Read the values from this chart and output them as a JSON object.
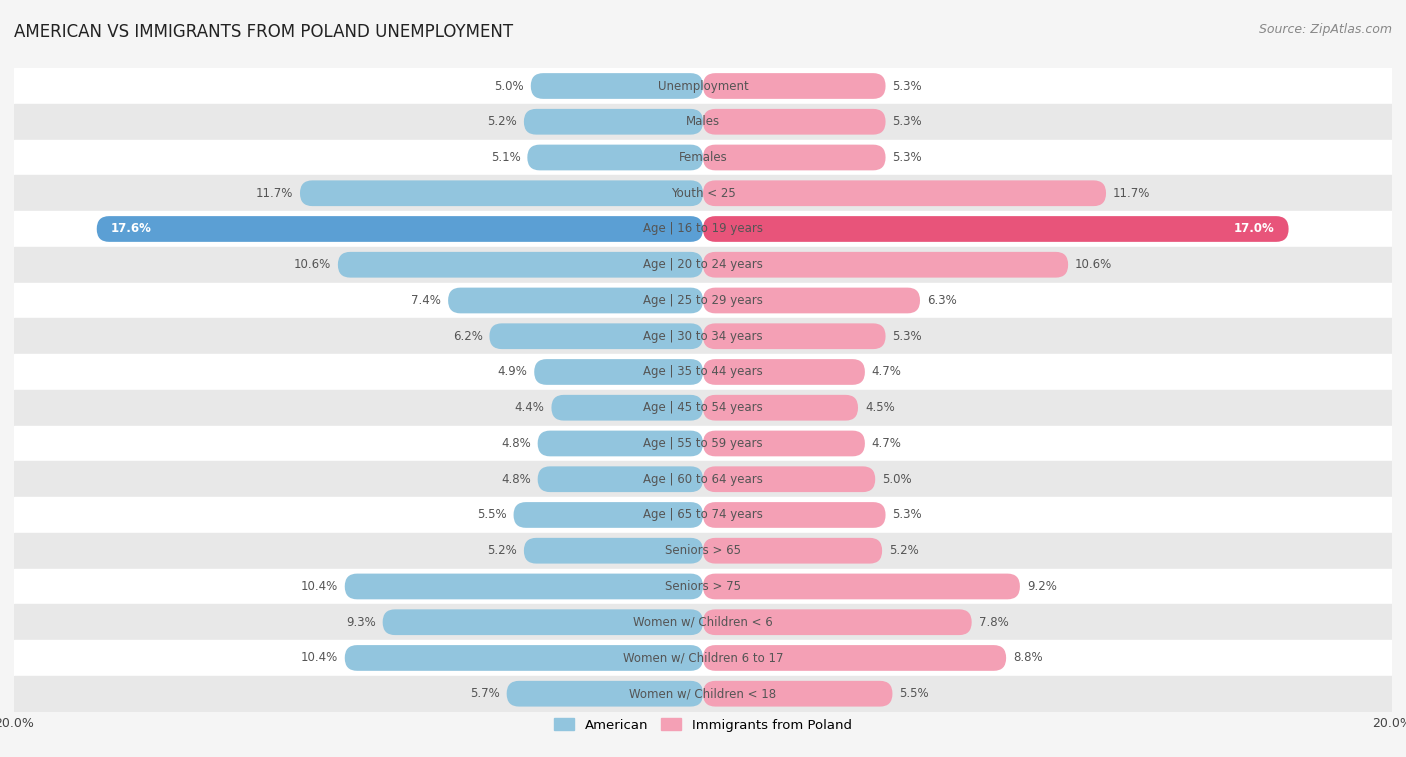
{
  "title": "AMERICAN VS IMMIGRANTS FROM POLAND UNEMPLOYMENT",
  "source": "Source: ZipAtlas.com",
  "categories": [
    "Unemployment",
    "Males",
    "Females",
    "Youth < 25",
    "Age | 16 to 19 years",
    "Age | 20 to 24 years",
    "Age | 25 to 29 years",
    "Age | 30 to 34 years",
    "Age | 35 to 44 years",
    "Age | 45 to 54 years",
    "Age | 55 to 59 years",
    "Age | 60 to 64 years",
    "Age | 65 to 74 years",
    "Seniors > 65",
    "Seniors > 75",
    "Women w/ Children < 6",
    "Women w/ Children 6 to 17",
    "Women w/ Children < 18"
  ],
  "american_values": [
    5.0,
    5.2,
    5.1,
    11.7,
    17.6,
    10.6,
    7.4,
    6.2,
    4.9,
    4.4,
    4.8,
    4.8,
    5.5,
    5.2,
    10.4,
    9.3,
    10.4,
    5.7
  ],
  "poland_values": [
    5.3,
    5.3,
    5.3,
    11.7,
    17.0,
    10.6,
    6.3,
    5.3,
    4.7,
    4.5,
    4.7,
    5.0,
    5.3,
    5.2,
    9.2,
    7.8,
    8.8,
    5.5
  ],
  "american_color": "#92c5de",
  "poland_color": "#f4a0b5",
  "american_color_highlight": "#5b9fd4",
  "poland_color_highlight": "#e8547a",
  "label_color": "#555555",
  "label_color_highlight": "#ffffff",
  "background_color": "#f5f5f5",
  "row_color_light": "#ffffff",
  "row_color_dark": "#e8e8e8",
  "xlim": 20.0,
  "bar_height": 0.72,
  "title_fontsize": 12,
  "label_fontsize": 8.5,
  "source_fontsize": 9
}
